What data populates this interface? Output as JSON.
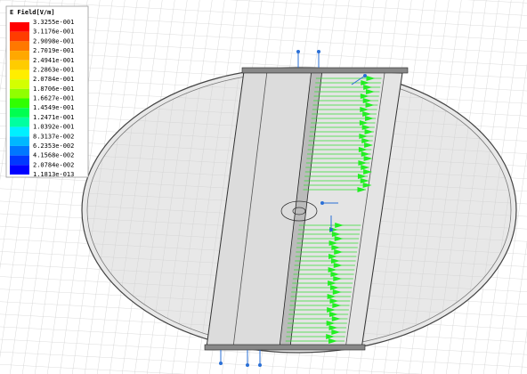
{
  "legend": {
    "title": "E Field[V/m]",
    "labels": [
      "3.3255e-001",
      "3.1176e-001",
      "2.9098e-001",
      "2.7019e-001",
      "2.4941e-001",
      "2.2863e-001",
      "2.0784e-001",
      "1.8706e-001",
      "1.6627e-001",
      "1.4549e-001",
      "1.2471e-001",
      "1.0392e-001",
      "8.3137e-002",
      "6.2353e-002",
      "4.1568e-002",
      "2.0784e-002",
      "1.1813e-013"
    ],
    "colors": [
      "#ff0000",
      "#ff3c00",
      "#ff7800",
      "#ffa800",
      "#ffcc00",
      "#ffee00",
      "#d4ff00",
      "#90ff00",
      "#30ff00",
      "#00ff50",
      "#00ffa0",
      "#00f0ff",
      "#00b8ff",
      "#0078ff",
      "#0038ff",
      "#0000ff"
    ]
  }
}
